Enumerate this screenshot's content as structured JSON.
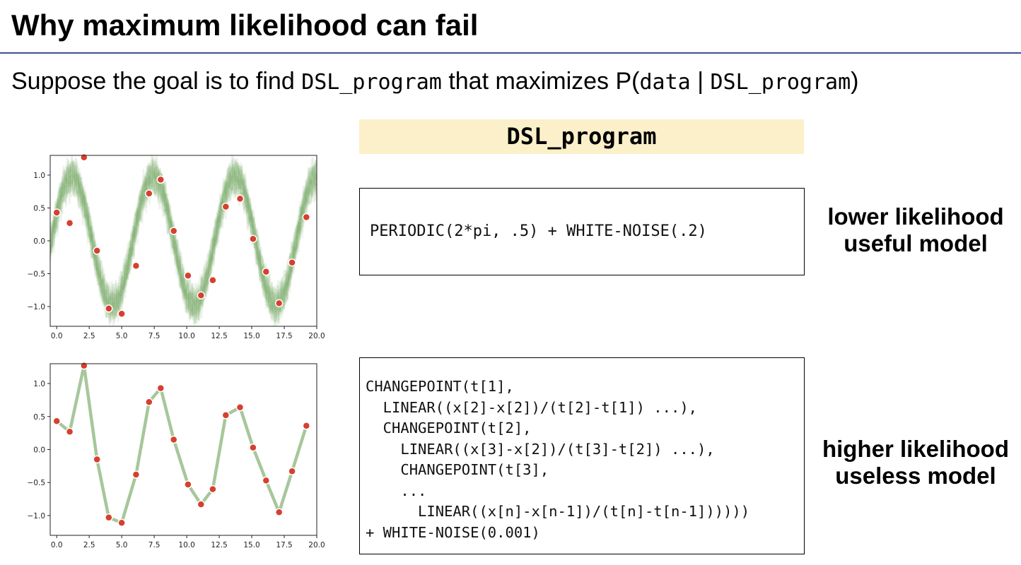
{
  "slide": {
    "title": "Why maximum likelihood can fail",
    "subtitle": {
      "prefix": "Suppose the goal is to find ",
      "code1": "DSL_program",
      "middle": " that maximizes P(",
      "code2": "data",
      "bar": " | ",
      "code3": "DSL_program",
      "suffix": ")"
    },
    "column_header": "DSL_program",
    "model1": {
      "code": "PERIODIC(2*pi, .5) + WHITE-NOISE(.2)",
      "label_line1": "lower likelihood",
      "label_line2": "useful model"
    },
    "model2": {
      "code_lines": [
        "CHANGEPOINT(t[1],",
        "  LINEAR((x[2]-x[2])/(t[2]-t[1]) ...),",
        "  CHANGEPOINT(t[2],",
        "    LINEAR((x[3]-x[2])/(t[3]-t[2]) ...),",
        "    CHANGEPOINT(t[3],",
        "    ...",
        "      LINEAR((x[n]-x[n-1])/(t[n]-t[n-1])))))",
        "+ WHITE-NOISE(0.001)"
      ],
      "label_line1": "higher likelihood",
      "label_line2": "useless model"
    }
  },
  "chart_data": [
    {
      "type": "scatter",
      "description": "data points with sampled periodic curves",
      "xlim": [
        -0.5,
        20
      ],
      "ylim": [
        -1.3,
        1.3
      ],
      "x_ticks": [
        "0.0",
        "2.5",
        "5.0",
        "7.5",
        "10.0",
        "12.5",
        "15.0",
        "17.5",
        "20.0"
      ],
      "y_ticks": [
        "1.0",
        "0.5",
        "0.0",
        "−0.5",
        "−1.0"
      ],
      "points": [
        [
          0,
          0.43
        ],
        [
          1,
          0.27
        ],
        [
          2.1,
          1.27
        ],
        [
          3.1,
          -0.15
        ],
        [
          4,
          -1.03
        ],
        [
          5,
          -1.11
        ],
        [
          6.1,
          -0.38
        ],
        [
          7.1,
          0.72
        ],
        [
          8,
          0.93
        ],
        [
          9,
          0.15
        ],
        [
          10.1,
          -0.53
        ],
        [
          11.1,
          -0.83
        ],
        [
          12,
          -0.6
        ],
        [
          13,
          0.52
        ],
        [
          14.1,
          0.64
        ],
        [
          15.1,
          0.03
        ],
        [
          16.1,
          -0.47
        ],
        [
          17.1,
          -0.95
        ],
        [
          18.1,
          -0.33
        ],
        [
          19.2,
          0.36
        ]
      ],
      "curve_period": 6.283,
      "point_color": "#d6402f",
      "curve_color": "#7fae6d"
    },
    {
      "type": "line",
      "description": "data points connected by piecewise linear segments",
      "xlim": [
        -0.5,
        20
      ],
      "ylim": [
        -1.3,
        1.3
      ],
      "x_ticks": [
        "0.0",
        "2.5",
        "5.0",
        "7.5",
        "10.0",
        "12.5",
        "15.0",
        "17.5",
        "20.0"
      ],
      "y_ticks": [
        "1.0",
        "0.5",
        "0.0",
        "−0.5",
        "−1.0"
      ],
      "points": [
        [
          0,
          0.43
        ],
        [
          1,
          0.27
        ],
        [
          2.1,
          1.27
        ],
        [
          3.1,
          -0.15
        ],
        [
          4,
          -1.03
        ],
        [
          5,
          -1.11
        ],
        [
          6.1,
          -0.38
        ],
        [
          7.1,
          0.72
        ],
        [
          8,
          0.93
        ],
        [
          9,
          0.15
        ],
        [
          10.1,
          -0.53
        ],
        [
          11.1,
          -0.83
        ],
        [
          12,
          -0.6
        ],
        [
          13,
          0.52
        ],
        [
          14.1,
          0.64
        ],
        [
          15.1,
          0.03
        ],
        [
          16.1,
          -0.47
        ],
        [
          17.1,
          -0.95
        ],
        [
          18.1,
          -0.33
        ],
        [
          19.2,
          0.36
        ]
      ],
      "point_color": "#d6402f",
      "line_color": "#a6c79a"
    }
  ]
}
